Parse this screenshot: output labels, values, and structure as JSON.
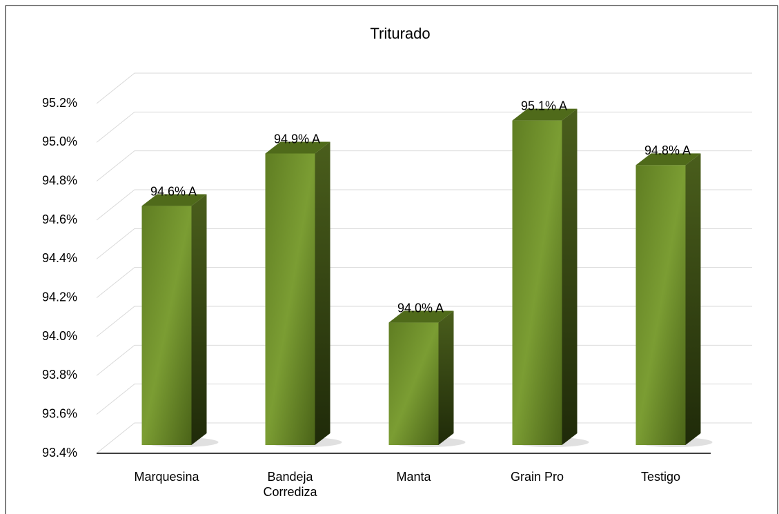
{
  "chart_data": {
    "type": "bar",
    "title": "Triturado",
    "categories": [
      "Marquesina",
      "Bandeja Corrediza",
      "Manta",
      "Grain Pro",
      "Testigo"
    ],
    "values": [
      94.63,
      94.9,
      94.03,
      95.07,
      94.84
    ],
    "value_labels": [
      "94.6% A",
      "94.9% A",
      "94.0% A",
      "95.1% A",
      "94.8% A"
    ],
    "color": "#6b8e23",
    "ylim": [
      93.4,
      95.2
    ],
    "yticks": [
      {
        "value": 93.4,
        "label": "93.4%"
      },
      {
        "value": 93.6,
        "label": "93.6%"
      },
      {
        "value": 93.8,
        "label": "93.8%"
      },
      {
        "value": 94.0,
        "label": "94.0%"
      },
      {
        "value": 94.2,
        "label": "94.2%"
      },
      {
        "value": 94.4,
        "label": "94.4%"
      },
      {
        "value": 94.6,
        "label": "94.6%"
      },
      {
        "value": 94.8,
        "label": "94.8%"
      },
      {
        "value": 95.0,
        "label": "95.0%"
      },
      {
        "value": 95.2,
        "label": "95.2%"
      }
    ],
    "grid": true
  }
}
